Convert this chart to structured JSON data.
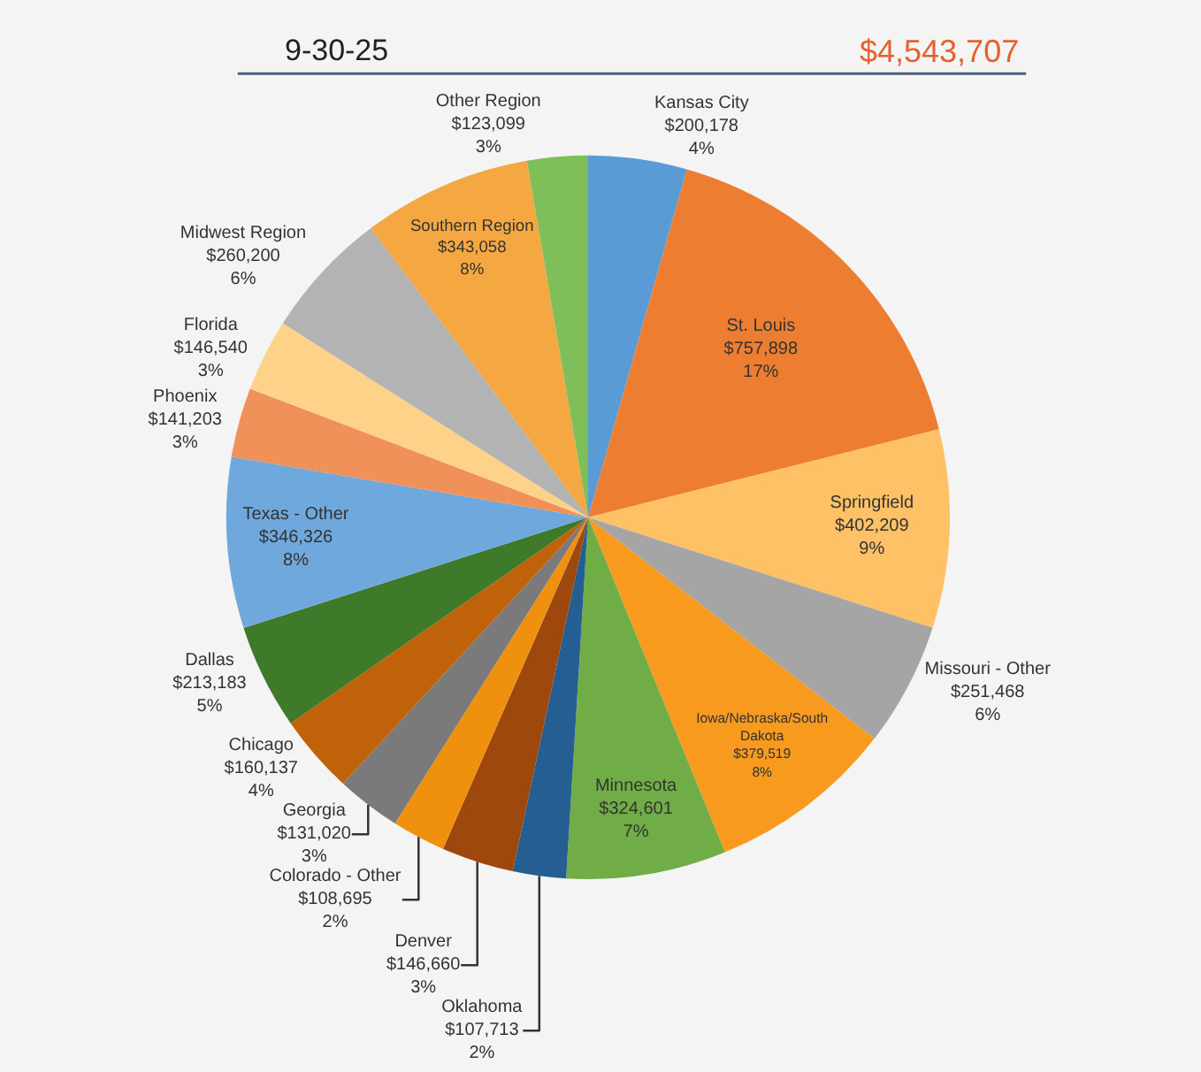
{
  "chart_data": {
    "type": "pie",
    "title": "9-30-25",
    "subtitle": "$4,543,707",
    "categories": [
      "Kansas City",
      "St. Louis",
      "Springfield",
      "Missouri - Other",
      "Iowa/Nebraska/South Dakota",
      "Minnesota",
      "Oklahoma",
      "Denver",
      "Colorado - Other",
      "Georgia",
      "Chicago",
      "Dallas",
      "Texas - Other",
      "Phoenix",
      "Florida",
      "Midwest Region",
      "Southern Region",
      "Other Region"
    ],
    "values": [
      200178,
      757898,
      402209,
      251468,
      379519,
      324601,
      107713,
      146660,
      108695,
      131020,
      160137,
      213183,
      346326,
      141203,
      146540,
      260200,
      343058,
      123099
    ],
    "colors": [
      "#5b9bd5",
      "#ed7d31",
      "#ffc166",
      "#a5a5a5",
      "#f79a1e",
      "#70ad47",
      "#255e91",
      "#9e480e",
      "#f0900f",
      "#7a7a7a",
      "#c0620a",
      "#3e7a2a",
      "#6fa8dc",
      "#f0915a",
      "#ffd28a",
      "#b3b3b3",
      "#f5a742",
      "#7fbf5a"
    ],
    "value_labels": [
      "$200,178\n4%",
      "$757,898\n17%",
      "$402,209\n9%",
      "$251,468\n6%",
      "$379,519\n8%",
      "$324,601\n7%",
      "$107,713\n2%",
      "$146,660\n3%",
      "$108,695\n2%",
      "$131,020\n3%",
      "$160,137\n4%",
      "$213,183\n5%",
      "$346,326\n8%",
      "$141,203\n3%",
      "$146,540\n3%",
      "$260,200\n6%",
      "$343,058\n8%",
      "$123,099\n3%"
    ]
  }
}
